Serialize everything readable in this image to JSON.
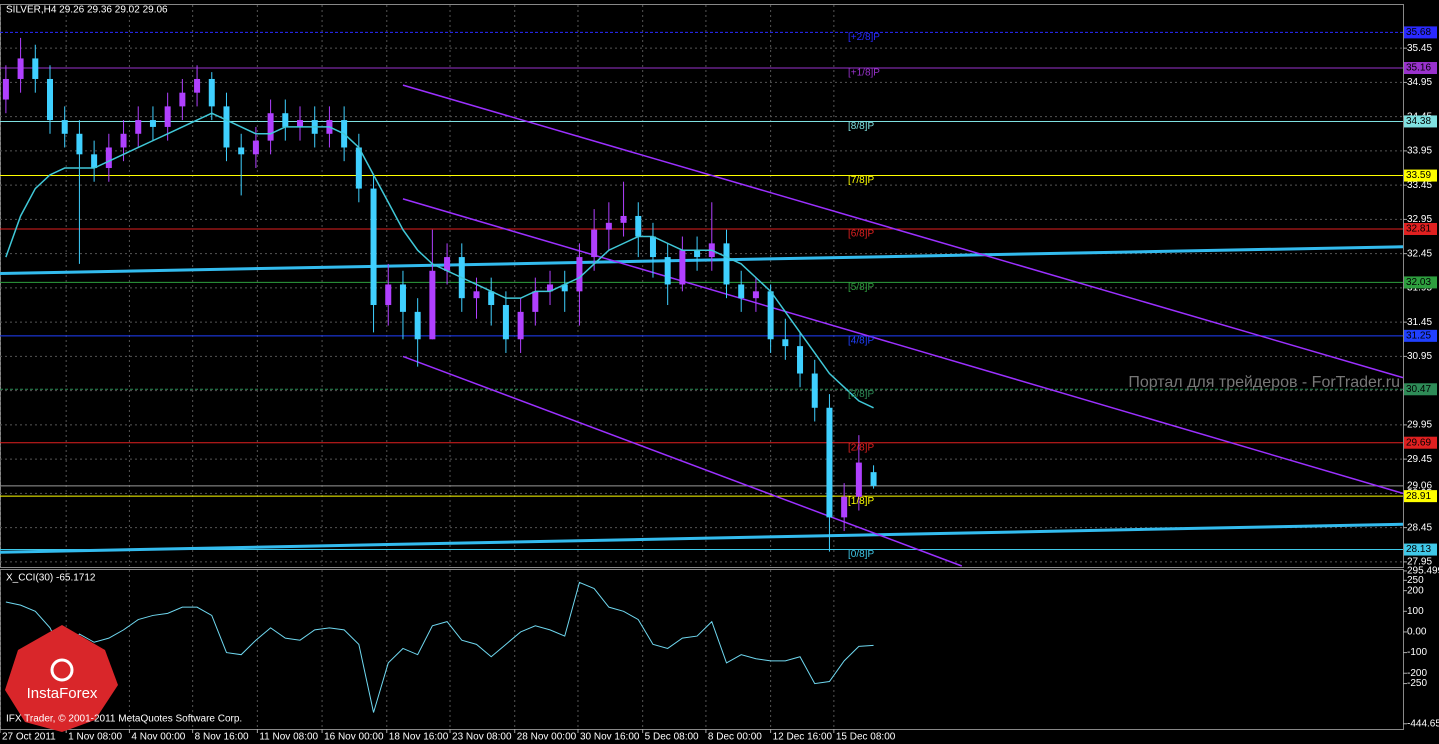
{
  "header": "SILVER,H4  29.26 29.36 29.02 29.06",
  "watermark": "Портал для трейдеров - ForTrader.ru",
  "copyright": "IFX Trader, © 2001-2011 MetaQuotes Software Corp.",
  "logo": "InstaForex",
  "chart_data": [
    {
      "type": "candlestick",
      "open": [
        34.7,
        35.0,
        35.3,
        35.0,
        34.4,
        34.2,
        33.9,
        33.7,
        34.0,
        34.2,
        34.4,
        34.3,
        34.6,
        34.8,
        35.0,
        34.6,
        34.0,
        33.9,
        34.1,
        34.5,
        34.3,
        34.4,
        34.2,
        34.4,
        34.0,
        33.4,
        31.7,
        32.0,
        31.6,
        31.2,
        32.2,
        32.4,
        31.8,
        31.9,
        31.7,
        31.2,
        31.6,
        31.9,
        32.0,
        31.9,
        32.4,
        32.8,
        32.9,
        33.0,
        32.7,
        32.4,
        32.0,
        32.5,
        32.4,
        32.6,
        32.0,
        31.8,
        31.9,
        31.2,
        31.1,
        30.7,
        30.2,
        28.6,
        28.9,
        29.26
      ],
      "high": [
        35.2,
        35.6,
        35.5,
        35.2,
        34.6,
        34.4,
        34.1,
        34.2,
        34.4,
        34.6,
        34.6,
        34.8,
        35.0,
        35.2,
        35.1,
        34.8,
        34.2,
        34.3,
        34.7,
        34.7,
        34.6,
        34.6,
        34.6,
        34.6,
        34.2,
        33.6,
        32.3,
        32.2,
        31.8,
        32.8,
        32.6,
        32.6,
        32.1,
        32.1,
        31.9,
        31.8,
        32.1,
        32.2,
        32.2,
        32.6,
        33.1,
        33.2,
        33.5,
        33.2,
        32.9,
        32.6,
        32.7,
        32.7,
        33.2,
        32.8,
        32.2,
        32.1,
        32.0,
        31.5,
        31.3,
        30.9,
        30.4,
        29.1,
        29.8,
        29.36
      ],
      "low": [
        34.5,
        34.8,
        34.8,
        34.2,
        34.0,
        32.3,
        33.5,
        33.5,
        33.8,
        34.0,
        34.1,
        34.1,
        34.4,
        34.6,
        34.4,
        33.8,
        33.3,
        33.7,
        33.9,
        34.1,
        34.1,
        34.0,
        34.0,
        33.8,
        33.2,
        31.3,
        31.4,
        31.2,
        30.8,
        31.2,
        32.0,
        31.6,
        31.5,
        31.4,
        31.0,
        31.0,
        31.4,
        31.7,
        31.6,
        31.4,
        32.2,
        32.5,
        32.7,
        32.4,
        32.1,
        31.7,
        31.9,
        32.2,
        32.2,
        31.8,
        31.6,
        31.6,
        31.0,
        30.9,
        30.5,
        30.0,
        28.1,
        28.4,
        28.7,
        29.02
      ],
      "close": [
        35.0,
        35.3,
        35.0,
        34.4,
        34.2,
        33.9,
        33.7,
        34.0,
        34.2,
        34.4,
        34.3,
        34.6,
        34.8,
        35.0,
        34.6,
        34.0,
        33.9,
        34.1,
        34.5,
        34.3,
        34.4,
        34.2,
        34.4,
        34.0,
        33.4,
        31.7,
        32.0,
        31.6,
        31.2,
        32.2,
        32.4,
        31.8,
        31.9,
        31.7,
        31.2,
        31.6,
        31.9,
        32.0,
        31.9,
        32.4,
        32.8,
        32.9,
        33.0,
        32.7,
        32.4,
        32.0,
        32.5,
        32.4,
        32.6,
        32.0,
        31.8,
        31.9,
        31.2,
        31.1,
        30.7,
        30.2,
        28.6,
        28.9,
        29.4,
        29.06
      ],
      "up_color": "#b040ff",
      "down_color": "#3fd0ff",
      "ma": [
        32.4,
        33.0,
        33.4,
        33.6,
        33.7,
        33.7,
        33.7,
        33.8,
        33.9,
        34.0,
        34.1,
        34.2,
        34.3,
        34.4,
        34.5,
        34.4,
        34.3,
        34.2,
        34.2,
        34.3,
        34.3,
        34.3,
        34.3,
        34.2,
        34.0,
        33.6,
        33.2,
        32.8,
        32.5,
        32.3,
        32.2,
        32.1,
        32.0,
        31.9,
        31.8,
        31.8,
        31.9,
        31.9,
        32.0,
        32.1,
        32.3,
        32.5,
        32.6,
        32.7,
        32.7,
        32.6,
        32.5,
        32.5,
        32.5,
        32.4,
        32.3,
        32.1,
        31.9,
        31.6,
        31.3,
        31.0,
        30.7,
        30.5,
        30.3,
        30.2
      ],
      "ma_color": "#40c8d8",
      "levels": [
        {
          "label": "[+2/8]P",
          "value": 35.68,
          "color": "#2a2aff"
        },
        {
          "label": "[+1/8]P",
          "value": 35.16,
          "color": "#9932cc"
        },
        {
          "label": "[8/8]P",
          "value": 34.38,
          "color": "#7fe0e0"
        },
        {
          "label": "[7/8]P",
          "value": 33.59,
          "color": "#ffff00"
        },
        {
          "label": "[6/8]P",
          "value": 32.81,
          "color": "#e02020"
        },
        {
          "label": "[5/8]P",
          "value": 32.03,
          "color": "#2e9e3e"
        },
        {
          "label": "[4/8]P",
          "value": 31.25,
          "color": "#2040ff"
        },
        {
          "label": "[3/8]P",
          "value": 30.47,
          "color": "#2e8b57"
        },
        {
          "label": "[2/8]P",
          "value": 29.69,
          "color": "#e02020"
        },
        {
          "label": "[1/8]P",
          "value": 28.91,
          "color": "#ffff00"
        },
        {
          "label": "[0/8]P",
          "value": 28.13,
          "color": "#40c8e8"
        }
      ],
      "channels": [
        {
          "x": [
            27,
            95
          ],
          "y": [
            34.91,
            30.64
          ]
        },
        {
          "x": [
            27,
            95
          ],
          "y": [
            33.25,
            28.95
          ]
        },
        {
          "x": [
            27,
            65
          ],
          "y": [
            30.95,
            27.89
          ]
        }
      ],
      "channel_color": "#9b30ff",
      "trend_lines": [
        {
          "x": [
            -0.4,
            95
          ],
          "y": [
            32.16,
            32.55
          ]
        },
        {
          "x": [
            -0.4,
            95
          ],
          "y": [
            28.09,
            28.5
          ]
        }
      ],
      "trend_color": "#33bbee",
      "last_price": 29.06,
      "xlim": [
        -0.4,
        95
      ],
      "xticks": [
        {
          "value": -0.4,
          "label": "27 Oct 2011"
        },
        {
          "value": 4.1,
          "label": "1 Nov 08:00"
        },
        {
          "value": 8.4,
          "label": "4 Nov 00:00"
        },
        {
          "value": 12.7,
          "label": "8 Nov 16:00"
        },
        {
          "value": 17.1,
          "label": "11 Nov 08:00"
        },
        {
          "value": 21.5,
          "label": "16 Nov 00:00"
        },
        {
          "value": 25.9,
          "label": "18 Nov 16:00"
        },
        {
          "value": 30.2,
          "label": "23 Nov 08:00"
        },
        {
          "value": 34.6,
          "label": "28 Nov 00:00"
        },
        {
          "value": 38.9,
          "label": "30 Nov 16:00"
        },
        {
          "value": 43.3,
          "label": "5 Dec 08:00"
        },
        {
          "value": 47.6,
          "label": "8 Dec 00:00"
        },
        {
          "value": 52.0,
          "label": "12 Dec 16:00"
        },
        {
          "value": 56.3,
          "label": "15 Dec 08:00"
        }
      ],
      "ylim": [
        27.89,
        36.08
      ],
      "yticks": [
        35.45,
        34.95,
        34.45,
        33.95,
        33.45,
        32.95,
        32.45,
        31.95,
        31.45,
        30.95,
        30.45,
        29.95,
        29.45,
        28.95,
        28.45,
        27.95
      ],
      "grid": true
    },
    {
      "type": "line",
      "title": "X_CCI(30) -65.1712",
      "color": "#6fd8f0",
      "values": [
        145,
        130,
        100,
        20,
        -130,
        -10,
        -50,
        -30,
        10,
        60,
        80,
        90,
        120,
        120,
        80,
        -100,
        -110,
        -40,
        20,
        -30,
        -40,
        10,
        20,
        10,
        -60,
        -390,
        -150,
        -80,
        -110,
        30,
        50,
        -40,
        -60,
        -120,
        -60,
        0,
        30,
        10,
        -20,
        240,
        210,
        120,
        100,
        60,
        -60,
        -80,
        -30,
        -20,
        50,
        -150,
        -110,
        -130,
        -140,
        -140,
        -120,
        -250,
        -240,
        -140,
        -70,
        -65.1712
      ],
      "ylim": [
        -470,
        300
      ],
      "yticks": [
        295.499,
        250,
        200,
        100,
        {
          "value": 0,
          "label": "0.00"
        },
        -100,
        -200,
        -250,
        -444.659
      ]
    }
  ]
}
